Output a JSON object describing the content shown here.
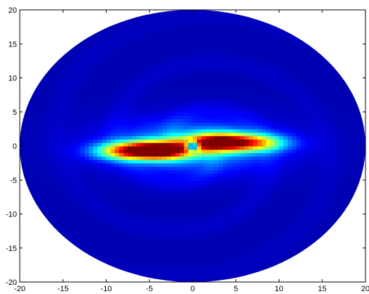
{
  "chart_data": {
    "type": "heatmap",
    "title": "",
    "xlabel": "",
    "ylabel": "",
    "xlim": [
      -20,
      20
    ],
    "ylim": [
      -20,
      20
    ],
    "xticks": [
      -20,
      -15,
      -10,
      -5,
      0,
      5,
      10,
      15,
      20
    ],
    "yticks": [
      -20,
      -15,
      -10,
      -5,
      0,
      5,
      10,
      15,
      20
    ],
    "grid": false,
    "legend": "none",
    "colormap": "jet",
    "domain_shape": "disc of radius 20 centered at (0, 0)",
    "hotspots": [
      {
        "x": -4.0,
        "y": -0.6,
        "intensity": 1.0
      },
      {
        "x": 3.0,
        "y": 0.6,
        "intensity": 0.9
      },
      {
        "x": 7.5,
        "y": 0.5,
        "intensity": 0.45
      },
      {
        "x": -8.0,
        "y": -0.7,
        "intensity": 0.5
      }
    ],
    "background_intensity": 0.05
  }
}
